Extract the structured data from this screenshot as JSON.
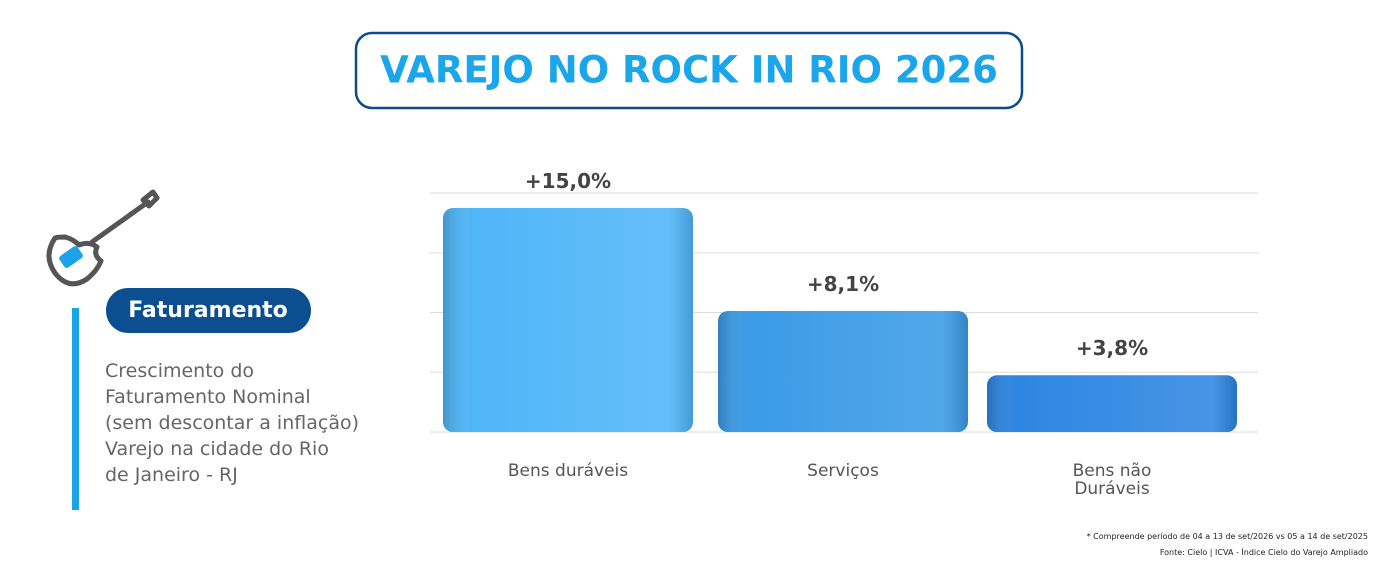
{
  "header": {
    "title": "VAREJO NO ROCK IN RIO 2026"
  },
  "sidebar": {
    "badge": "Faturamento",
    "description": [
      "Crescimento do",
      "Faturamento Nominal",
      "(sem descontar a inflação)",
      "Varejo na cidade do Rio",
      "de Janeiro - RJ"
    ]
  },
  "chart_data": {
    "type": "bar",
    "categories": [
      "Bens duráveis",
      "Serviços",
      "Bens não Duráveis"
    ],
    "values": [
      15.0,
      8.1,
      3.8
    ],
    "value_labels": [
      "+15,0%",
      "+8,1%",
      "+3,8%"
    ],
    "colors": [
      "#4fb6f8",
      "#3b9be6",
      "#2e86e2"
    ],
    "ylim": [
      0,
      16
    ],
    "yticks": [
      0,
      4,
      8,
      12,
      16
    ],
    "grid": true
  },
  "footer": {
    "note": "* Compreende período de 04 a 13 de set/2026 vs 05 a 14 de set/2025",
    "source": "Fonte: Cielo | ICVA - Índice Cielo do Varejo Ampliado"
  }
}
